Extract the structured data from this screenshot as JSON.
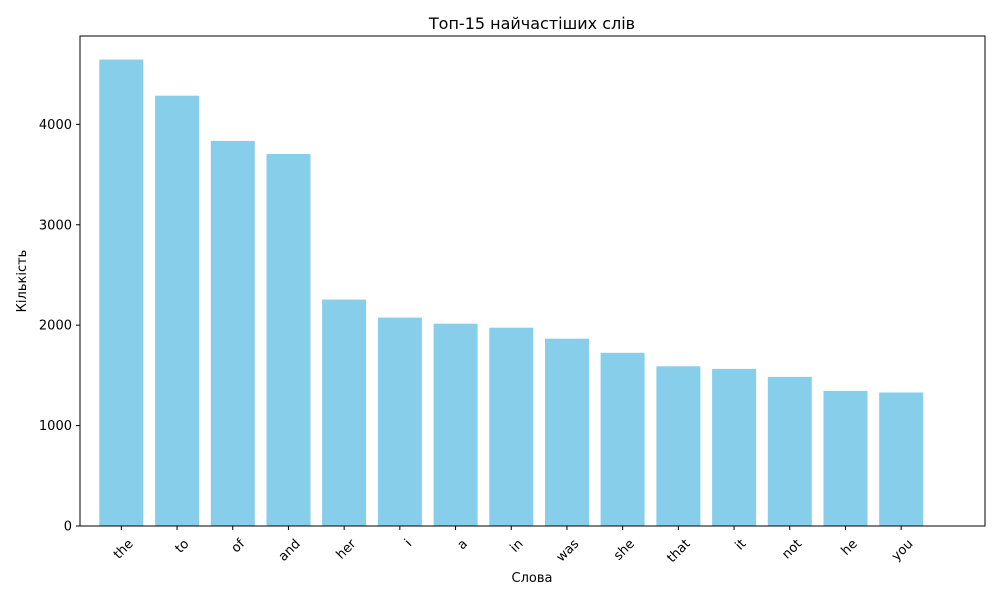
{
  "chart_data": {
    "type": "bar",
    "title": "Топ-15 найчастіших слів",
    "xlabel": "Слова",
    "ylabel": "Кількість",
    "categories": [
      "the",
      "to",
      "of",
      "and",
      "her",
      "i",
      "a",
      "in",
      "was",
      "she",
      "that",
      "it",
      "not",
      "he",
      "you"
    ],
    "values": [
      4645,
      4285,
      3835,
      3705,
      2255,
      2075,
      2015,
      1975,
      1865,
      1725,
      1590,
      1565,
      1485,
      1345,
      1330
    ],
    "ylim": [
      0,
      4880
    ],
    "yticks": [
      0,
      1000,
      2000,
      3000,
      4000
    ],
    "bar_color": "#87ceeb",
    "grid": false,
    "legend": "none"
  }
}
